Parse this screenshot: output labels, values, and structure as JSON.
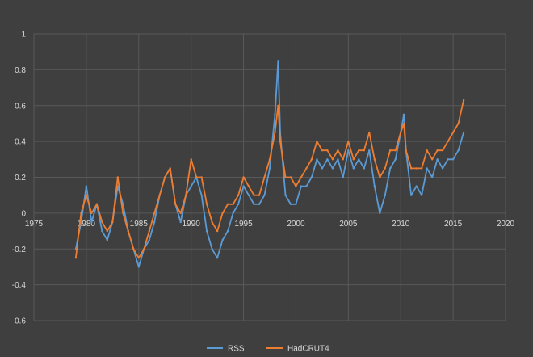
{
  "chart_data": {
    "type": "line",
    "title": "",
    "xlabel": "",
    "ylabel": "",
    "xlim": [
      1975,
      2020
    ],
    "ylim": [
      -0.6,
      1
    ],
    "x_ticks": [
      1975,
      1980,
      1985,
      1990,
      1995,
      2000,
      2005,
      2010,
      2015,
      2020
    ],
    "x_tick_labels": [
      "1975",
      "1980",
      "1985",
      "1990",
      "1995",
      "2000",
      "2005",
      "2010",
      "2015",
      "2020"
    ],
    "y_ticks": [
      -0.6,
      -0.4,
      -0.2,
      0,
      0.2,
      0.4,
      0.6,
      0.8,
      1
    ],
    "y_tick_labels": [
      "-0.6",
      "-0.4",
      "-0.2",
      "0",
      "0.2",
      "0.4",
      "0.6",
      "0.8",
      "1"
    ],
    "grid": true,
    "legend_position": "bottom",
    "series": [
      {
        "name": "RSS",
        "color": "#5b9bd5",
        "x": [
          1979.0,
          1979.5,
          1980.0,
          1980.5,
          1981.0,
          1981.5,
          1982.0,
          1982.5,
          1983.0,
          1983.5,
          1984.0,
          1984.5,
          1985.0,
          1985.5,
          1986.0,
          1986.5,
          1987.0,
          1987.5,
          1988.0,
          1988.5,
          1989.0,
          1989.5,
          1990.0,
          1990.5,
          1991.0,
          1991.5,
          1992.0,
          1992.5,
          1993.0,
          1993.5,
          1994.0,
          1994.5,
          1995.0,
          1995.5,
          1996.0,
          1996.5,
          1997.0,
          1997.5,
          1998.0,
          1998.3,
          1998.5,
          1999.0,
          1999.5,
          2000.0,
          2000.5,
          2001.0,
          2001.5,
          2002.0,
          2002.5,
          2003.0,
          2003.5,
          2004.0,
          2004.5,
          2005.0,
          2005.5,
          2006.0,
          2006.5,
          2007.0,
          2007.5,
          2008.0,
          2008.5,
          2009.0,
          2009.5,
          2010.0,
          2010.3,
          2010.5,
          2011.0,
          2011.5,
          2012.0,
          2012.5,
          2013.0,
          2013.5,
          2014.0,
          2014.5,
          2015.0,
          2015.5,
          2016.0
        ],
        "values": [
          -0.2,
          -0.05,
          0.15,
          -0.05,
          0.05,
          -0.1,
          -0.15,
          -0.05,
          0.15,
          0.05,
          -0.1,
          -0.2,
          -0.3,
          -0.2,
          -0.15,
          -0.05,
          0.1,
          0.2,
          0.25,
          0.05,
          -0.05,
          0.1,
          0.15,
          0.2,
          0.1,
          -0.1,
          -0.2,
          -0.25,
          -0.15,
          -0.1,
          0.0,
          0.05,
          0.15,
          0.1,
          0.05,
          0.05,
          0.1,
          0.25,
          0.55,
          0.85,
          0.45,
          0.1,
          0.05,
          0.05,
          0.15,
          0.15,
          0.2,
          0.3,
          0.25,
          0.3,
          0.25,
          0.3,
          0.2,
          0.35,
          0.25,
          0.3,
          0.25,
          0.35,
          0.15,
          0.0,
          0.1,
          0.25,
          0.3,
          0.45,
          0.55,
          0.35,
          0.1,
          0.15,
          0.1,
          0.25,
          0.2,
          0.3,
          0.25,
          0.3,
          0.3,
          0.35,
          0.45
        ]
      },
      {
        "name": "HadCRUT4",
        "color": "#ed7d31",
        "x": [
          1979.0,
          1979.5,
          1980.0,
          1980.5,
          1981.0,
          1981.5,
          1982.0,
          1982.5,
          1983.0,
          1983.5,
          1984.0,
          1984.5,
          1985.0,
          1985.5,
          1986.0,
          1986.5,
          1987.0,
          1987.5,
          1988.0,
          1988.5,
          1989.0,
          1989.5,
          1990.0,
          1990.5,
          1991.0,
          1991.5,
          1992.0,
          1992.5,
          1993.0,
          1993.5,
          1994.0,
          1994.5,
          1995.0,
          1995.5,
          1996.0,
          1996.5,
          1997.0,
          1997.5,
          1998.0,
          1998.3,
          1998.5,
          1999.0,
          1999.5,
          2000.0,
          2000.5,
          2001.0,
          2001.5,
          2002.0,
          2002.5,
          2003.0,
          2003.5,
          2004.0,
          2004.5,
          2005.0,
          2005.5,
          2006.0,
          2006.5,
          2007.0,
          2007.5,
          2008.0,
          2008.5,
          2009.0,
          2009.5,
          2010.0,
          2010.3,
          2010.5,
          2011.0,
          2011.5,
          2012.0,
          2012.5,
          2013.0,
          2013.5,
          2014.0,
          2014.5,
          2015.0,
          2015.5,
          2016.0
        ],
        "values": [
          -0.25,
          0.0,
          0.1,
          0.0,
          0.05,
          -0.05,
          -0.1,
          -0.05,
          0.2,
          0.0,
          -0.1,
          -0.2,
          -0.25,
          -0.2,
          -0.1,
          0.0,
          0.1,
          0.2,
          0.25,
          0.05,
          0.0,
          0.1,
          0.3,
          0.2,
          0.2,
          0.05,
          -0.05,
          -0.1,
          0.0,
          0.05,
          0.05,
          0.1,
          0.2,
          0.15,
          0.1,
          0.1,
          0.2,
          0.3,
          0.45,
          0.6,
          0.4,
          0.2,
          0.2,
          0.15,
          0.2,
          0.25,
          0.3,
          0.4,
          0.35,
          0.35,
          0.3,
          0.35,
          0.3,
          0.4,
          0.3,
          0.35,
          0.35,
          0.45,
          0.3,
          0.2,
          0.25,
          0.35,
          0.35,
          0.45,
          0.5,
          0.35,
          0.25,
          0.25,
          0.25,
          0.35,
          0.3,
          0.35,
          0.35,
          0.4,
          0.45,
          0.5,
          0.63
        ]
      }
    ]
  }
}
